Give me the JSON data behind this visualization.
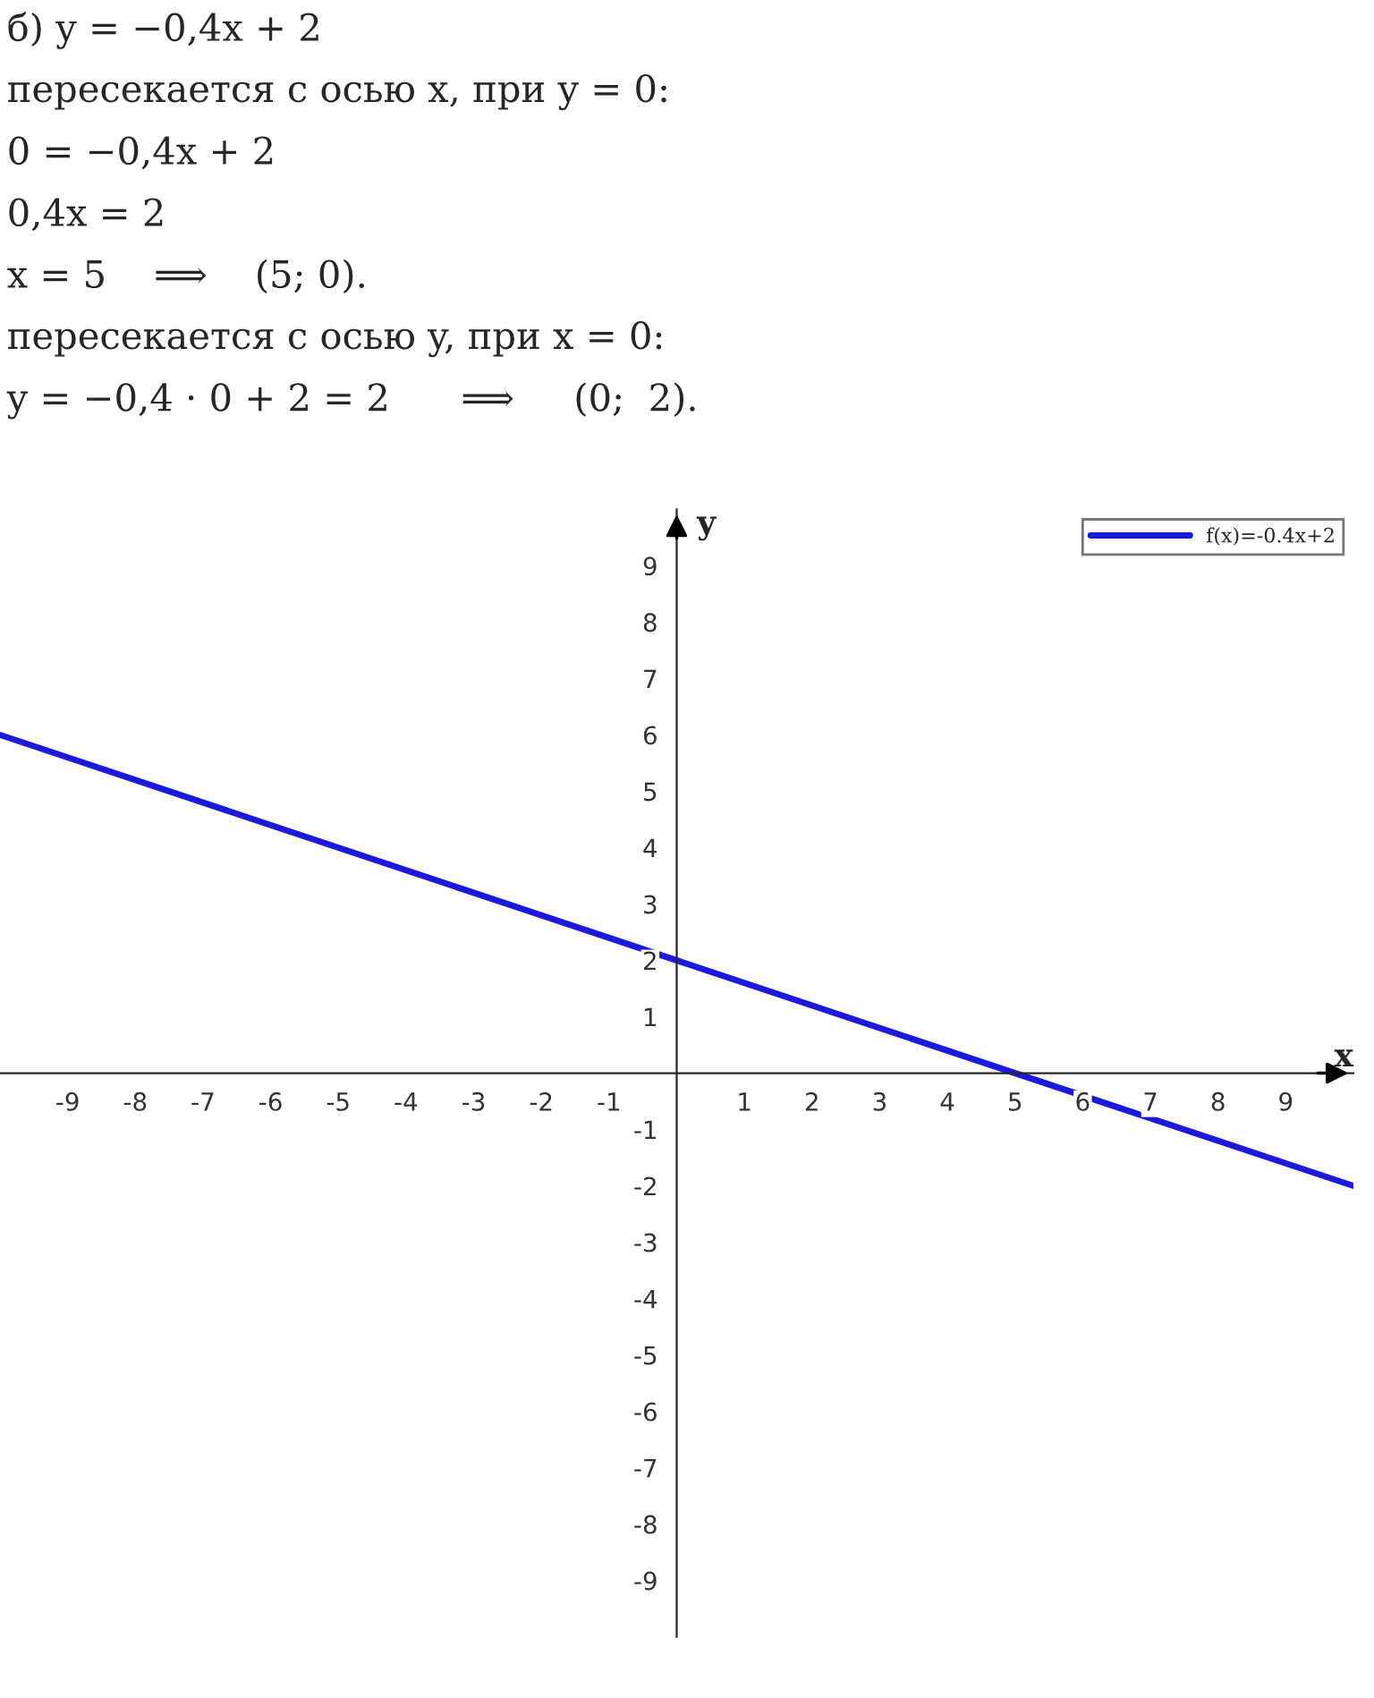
{
  "chart_data": {
    "type": "line",
    "annotations": [
      "б) y = −0,4x + 2",
      "пересекается с осью x, при y = 0:",
      "0 = −0,4x + 2",
      "0,4x = 2",
      "x = 5    ⟹    (5; 0).",
      "пересекается с осью y, при x = 0:",
      "y = −0,4 · 0 + 2 = 2      ⟹     (0;  2)."
    ],
    "xlabel": "x",
    "ylabel": "y",
    "x": [
      -10,
      10
    ],
    "series": [
      {
        "name": "f(x)=-0.4x+2",
        "color": "#1a1adc",
        "values": [
          6,
          -2
        ]
      }
    ],
    "xlim": [
      -10,
      10
    ],
    "ylim": [
      -10,
      10
    ],
    "xticks": [
      -9,
      -8,
      -7,
      -6,
      -5,
      -4,
      -3,
      -2,
      -1,
      1,
      2,
      3,
      4,
      5,
      6,
      7,
      8,
      9
    ],
    "yticks": [
      -9,
      -8,
      -7,
      -6,
      -5,
      -4,
      -3,
      -2,
      -1,
      1,
      2,
      3,
      4,
      5,
      6,
      7,
      8,
      9
    ],
    "grid": false,
    "legend": "top right",
    "marker": "none",
    "line_style": "solid"
  }
}
